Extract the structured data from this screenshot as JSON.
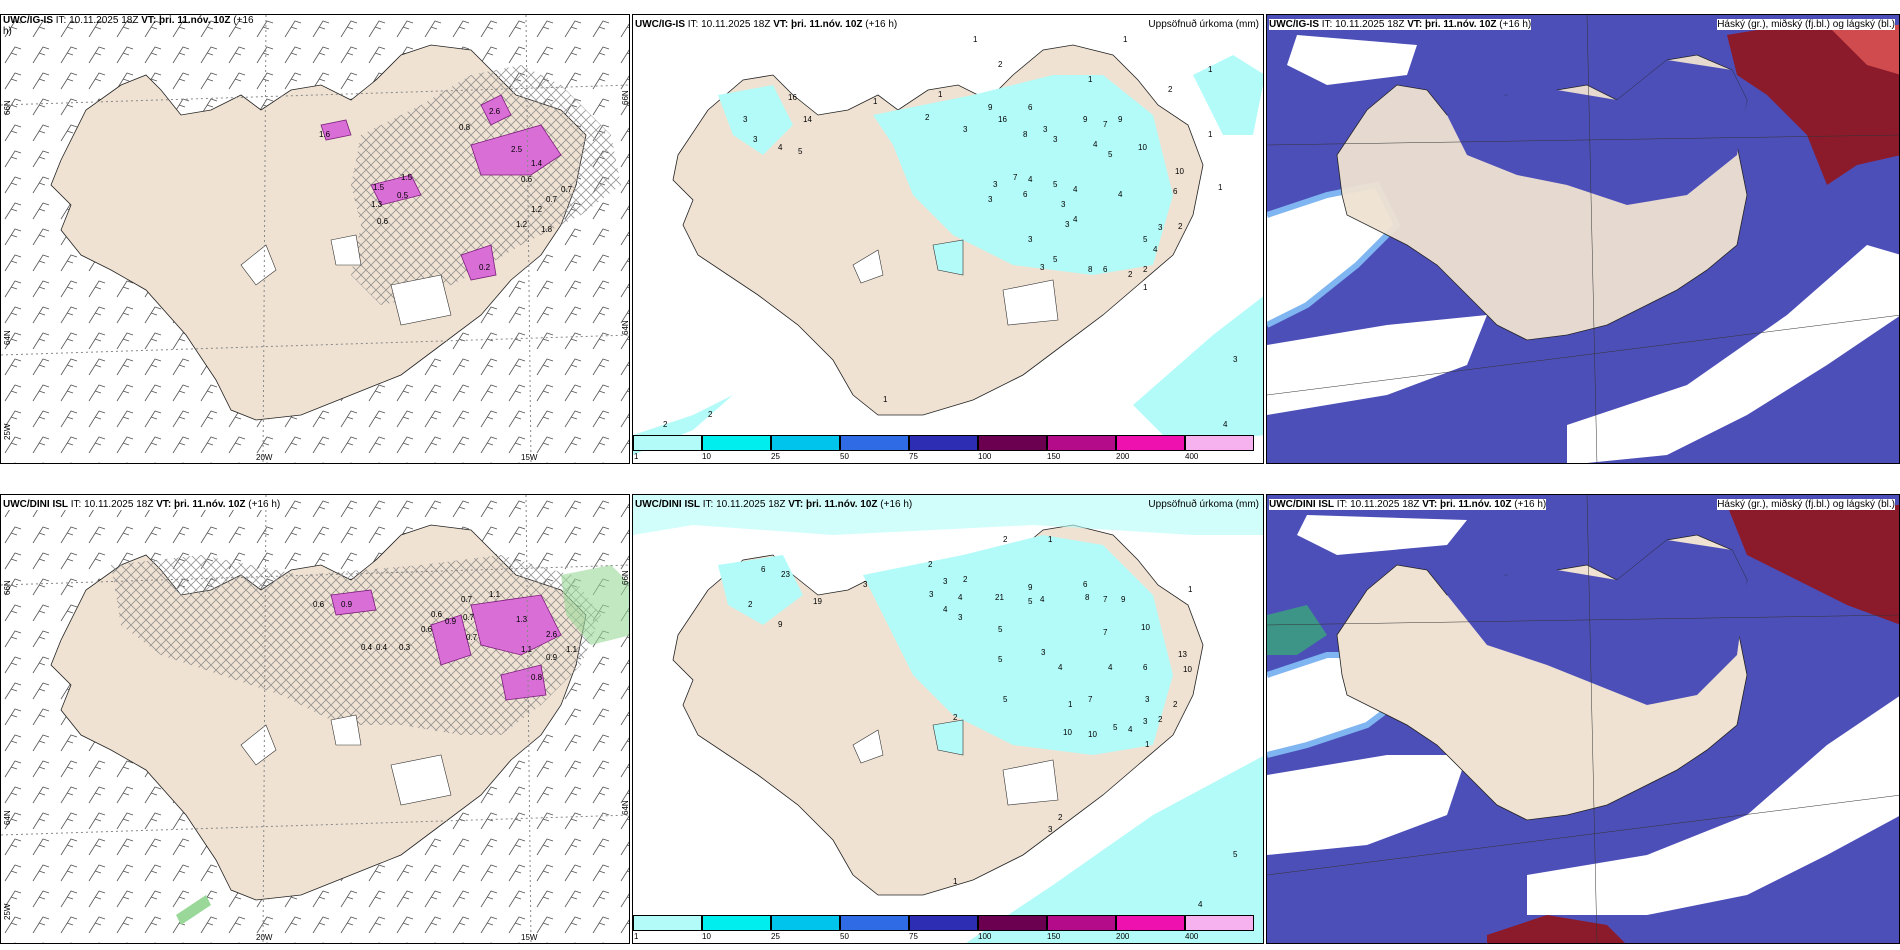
{
  "colors": {
    "land": "#efe2d2",
    "sea": "#ffffff",
    "precip_light": "#b3fbf8",
    "cloud_high": "#8b1a2b",
    "cloud_mid": "#4d4fb8",
    "cloud_low": "#7fb5f0",
    "snow_magenta": "#d96ed6",
    "hatch": "#9a9a9a"
  },
  "rows": [
    {
      "model": "UWC/IG-IS",
      "left": {
        "title_model": "UWC/IG-IS",
        "title_it": "IT: 10.11.2025 18Z",
        "title_vt": "VT: þri. 11.nóv. 10Z",
        "title_lead": "(+16",
        "title_wrap": "h)",
        "snow_labels": [
          "1.6",
          "2.6",
          "0.8",
          "1.5",
          "0.6",
          "2.5",
          "1.5",
          "0.6",
          "0.5",
          "1.4",
          "0.7",
          "1.2",
          "0.7",
          "1.2",
          "0.2",
          "1.8",
          "1.3"
        ],
        "lat_labels": [
          "66N",
          "64N",
          "66N",
          "64N"
        ],
        "lon_labels": [
          "20W",
          "15W",
          "25W"
        ]
      },
      "middle": {
        "title_model": "UWC/IG-IS",
        "title_it": "IT: 10.11.2025 18Z",
        "title_vt": "VT: þri. 11.nóv. 10Z",
        "title_lead": "(+16 h)",
        "title_right": "Uppsöfnuð úrkoma (mm)",
        "precip_labels": [
          "1",
          "1",
          "2",
          "2",
          "1",
          "16",
          "14",
          "3",
          "3",
          "4",
          "5",
          "1",
          "1",
          "2",
          "3",
          "9",
          "16",
          "6",
          "3",
          "8",
          "3",
          "9",
          "7",
          "9",
          "4",
          "1",
          "1",
          "10",
          "5",
          "3",
          "7",
          "4",
          "6",
          "3",
          "10",
          "5",
          "4",
          "3",
          "4",
          "3",
          "1",
          "6",
          "4",
          "5",
          "3",
          "2",
          "8",
          "2",
          "2",
          "3",
          "4",
          "5",
          "6",
          "3",
          "1",
          "4",
          "2",
          "3",
          "2",
          "1"
        ],
        "legend": [
          "1",
          "10",
          "25",
          "50",
          "75",
          "100",
          "150",
          "200",
          "400"
        ]
      },
      "right": {
        "title_model": "UWC/IG-IS",
        "title_it": "IT: 10.11.2025 18Z",
        "title_vt": "VT: þri. 11.nóv. 10Z",
        "title_lead": "(+16 h)",
        "title_right": "Háský (gr.), miðský (fj.bl.) og lágský (bl.)"
      }
    },
    {
      "model": "UWC/DINI ISL",
      "left": {
        "title_model": "UWC/DINI ISL",
        "title_it": "IT: 10.11.2025 18Z",
        "title_vt": "VT: þri. 11.nóv. 10Z",
        "title_lead": "(+16 h)",
        "title_wrap": "",
        "snow_labels": [
          "0.6",
          "0.9",
          "0.7",
          "1.1",
          "0.6",
          "0.7",
          "0.9",
          "0.6",
          "0.7",
          "0.4",
          "0.3",
          "1.3",
          "2.6",
          "1.1",
          "0.8",
          "0.9",
          "1.1",
          "0.4"
        ],
        "lat_labels": [
          "66N",
          "64N",
          "66N",
          "64N"
        ],
        "lon_labels": [
          "20W",
          "15W",
          "25W"
        ]
      },
      "middle": {
        "title_model": "UWC/DINI ISL",
        "title_it": "IT: 10.11.2025 18Z",
        "title_vt": "VT: þri. 11.nóv. 10Z",
        "title_lead": "(+16 h)",
        "title_right": "Uppsöfnuð úrkoma (mm)",
        "precip_labels": [
          "2",
          "1",
          "6",
          "23",
          "19",
          "2",
          "9",
          "3",
          "1",
          "2",
          "3",
          "3",
          "4",
          "4",
          "2",
          "21",
          "9",
          "5",
          "4",
          "6",
          "8",
          "7",
          "9",
          "10",
          "5",
          "3",
          "7",
          "3",
          "4",
          "5",
          "13",
          "10",
          "4",
          "7",
          "5",
          "6",
          "1",
          "2",
          "3",
          "2",
          "10",
          "10",
          "5",
          "4",
          "3",
          "2",
          "1",
          "2",
          "3",
          "1",
          "5",
          "4"
        ],
        "legend": [
          "1",
          "10",
          "25",
          "50",
          "75",
          "100",
          "150",
          "200",
          "400"
        ]
      },
      "right": {
        "title_model": "UWC/DINI ISL",
        "title_it": "IT: 10.11.2025 18Z",
        "title_vt": "VT: þri. 11.nóv. 10Z",
        "title_lead": "(+16 h)",
        "title_right": "Háský (gr.), miðský (fj.bl.) og lágský (bl.)"
      }
    }
  ]
}
